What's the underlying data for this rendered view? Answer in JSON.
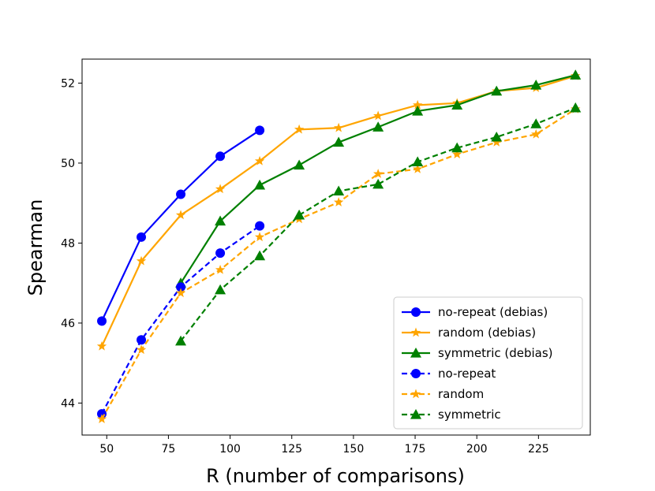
{
  "chart_data": {
    "type": "line",
    "title": "",
    "xlabel": "R (number of comparisons)",
    "ylabel": "Spearman",
    "xlim": [
      40,
      246
    ],
    "ylim": [
      43.2,
      52.6
    ],
    "xticks": [
      50,
      75,
      100,
      125,
      150,
      175,
      200,
      225
    ],
    "yticks": [
      44,
      46,
      48,
      50,
      52
    ],
    "grid": false,
    "legend_position": "lower-right",
    "series": [
      {
        "name": "no-repeat (debias)",
        "color": "#0000ff",
        "dash": "solid",
        "marker": "circle",
        "x": [
          48,
          64,
          80,
          96,
          112
        ],
        "y": [
          46.05,
          48.15,
          49.22,
          50.17,
          50.82
        ]
      },
      {
        "name": "random (debias)",
        "color": "#ffa500",
        "dash": "solid",
        "marker": "star",
        "x": [
          48,
          64,
          80,
          96,
          112,
          128,
          144,
          160,
          176,
          192,
          208,
          224,
          240
        ],
        "y": [
          45.42,
          47.55,
          48.7,
          49.35,
          50.05,
          50.84,
          50.88,
          51.18,
          51.45,
          51.5,
          51.8,
          51.88,
          52.18
        ]
      },
      {
        "name": "symmetric (debias)",
        "color": "#008000",
        "dash": "solid",
        "marker": "triangle",
        "x": [
          80,
          96,
          112,
          128,
          144,
          160,
          176,
          192,
          208,
          224,
          240
        ],
        "y": [
          47.0,
          48.55,
          49.45,
          49.95,
          50.52,
          50.9,
          51.3,
          51.45,
          51.8,
          51.95,
          52.2
        ]
      },
      {
        "name": "no-repeat",
        "color": "#0000ff",
        "dash": "dashed",
        "marker": "circle",
        "x": [
          48,
          64,
          80,
          96,
          112
        ],
        "y": [
          43.73,
          45.58,
          46.9,
          47.75,
          48.43
        ]
      },
      {
        "name": "random",
        "color": "#ffa500",
        "dash": "dashed",
        "marker": "star",
        "x": [
          48,
          64,
          80,
          96,
          112,
          128,
          144,
          160,
          176,
          192,
          208,
          224,
          240
        ],
        "y": [
          43.6,
          45.33,
          46.75,
          47.33,
          48.15,
          48.6,
          49.02,
          49.73,
          49.85,
          50.22,
          50.52,
          50.72,
          51.35
        ]
      },
      {
        "name": "symmetric",
        "color": "#008000",
        "dash": "dashed",
        "marker": "triangle",
        "x": [
          80,
          96,
          112,
          128,
          144,
          160,
          176,
          192,
          208,
          224,
          240
        ],
        "y": [
          45.55,
          46.83,
          47.68,
          48.7,
          49.3,
          49.47,
          50.03,
          50.38,
          50.65,
          50.98,
          51.38
        ]
      }
    ]
  }
}
